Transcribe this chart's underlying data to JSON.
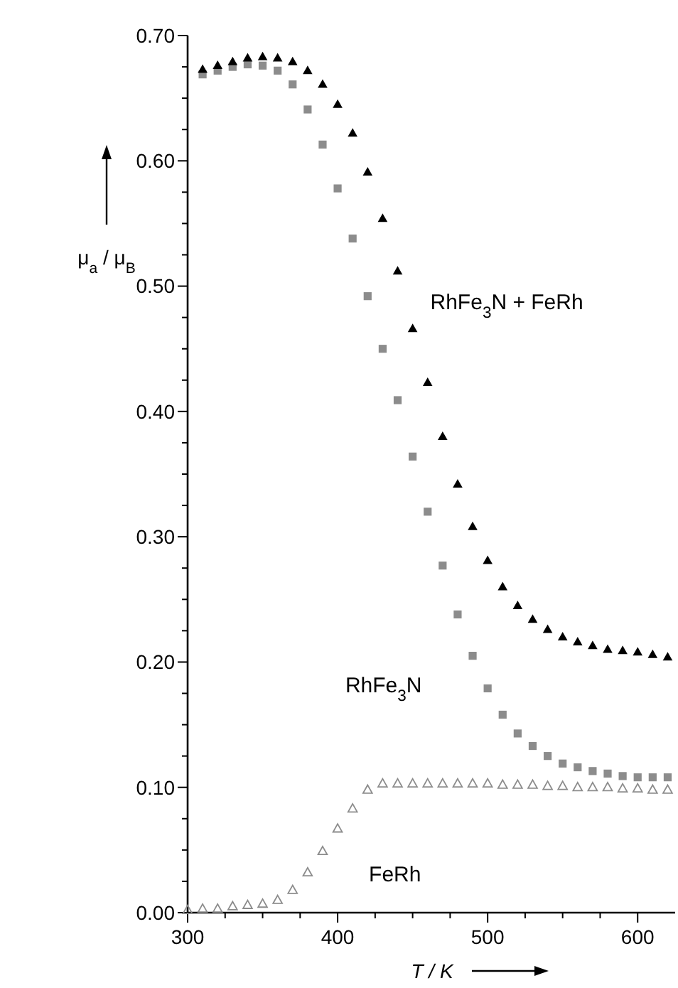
{
  "chart_data": {
    "type": "scatter",
    "xlabel": "T / K",
    "ylabel": "μ$_{a}$ / μ$_{B}$",
    "xlim": [
      300,
      625
    ],
    "ylim": [
      0,
      0.7
    ],
    "xticks": [
      300,
      {
        "value": 325,
        "label": null
      },
      {
        "value": 350,
        "label": null
      },
      {
        "value": 375,
        "label": null
      },
      400,
      {
        "value": 425,
        "label": null
      },
      {
        "value": 450,
        "label": null
      },
      {
        "value": 475,
        "label": null
      },
      500,
      {
        "value": 525,
        "label": null
      },
      {
        "value": 550,
        "label": null
      },
      {
        "value": 575,
        "label": null
      },
      600
    ],
    "yticks": [
      {
        "value": 0,
        "label": "0.00"
      },
      {
        "value": 0.025,
        "label": null
      },
      {
        "value": 0.05,
        "label": null
      },
      {
        "value": 0.075,
        "label": null
      },
      {
        "value": 0.1,
        "label": "0.10"
      },
      {
        "value": 0.125,
        "label": null
      },
      {
        "value": 0.15,
        "label": null
      },
      {
        "value": 0.175,
        "label": null
      },
      {
        "value": 0.2,
        "label": "0.20"
      },
      {
        "value": 0.225,
        "label": null
      },
      {
        "value": 0.25,
        "label": null
      },
      {
        "value": 0.275,
        "label": null
      },
      {
        "value": 0.3,
        "label": "0.30"
      },
      {
        "value": 0.325,
        "label": null
      },
      {
        "value": 0.35,
        "label": null
      },
      {
        "value": 0.375,
        "label": null
      },
      {
        "value": 0.4,
        "label": "0.40"
      },
      {
        "value": 0.425,
        "label": null
      },
      {
        "value": 0.45,
        "label": null
      },
      {
        "value": 0.475,
        "label": null
      },
      {
        "value": 0.5,
        "label": "0.50"
      },
      {
        "value": 0.525,
        "label": null
      },
      {
        "value": 0.55,
        "label": null
      },
      {
        "value": 0.575,
        "label": null
      },
      {
        "value": 0.6,
        "label": "0.60"
      },
      {
        "value": 0.625,
        "label": null
      },
      {
        "value": 0.65,
        "label": null
      },
      {
        "value": 0.675,
        "label": null
      },
      {
        "value": 0.7,
        "label": "0.70"
      }
    ],
    "grid": false,
    "series": [
      {
        "name": "RhFe$_{3}$N + FeRh",
        "color": "#000000",
        "marker": "triangle",
        "x": [
          310,
          320,
          330,
          340,
          350,
          360,
          370,
          380,
          390,
          400,
          410,
          420,
          430,
          440,
          450,
          460,
          470,
          480,
          490,
          500,
          510,
          520,
          530,
          540,
          550,
          560,
          570,
          580,
          590,
          600,
          610,
          620
        ],
        "values": [
          0.673,
          0.676,
          0.679,
          0.682,
          0.683,
          0.682,
          0.679,
          0.672,
          0.661,
          0.645,
          0.622,
          0.591,
          0.554,
          0.512,
          0.466,
          0.423,
          0.38,
          0.342,
          0.308,
          0.281,
          0.26,
          0.245,
          0.234,
          0.226,
          0.22,
          0.216,
          0.213,
          0.21,
          0.209,
          0.208,
          0.206,
          0.204
        ]
      },
      {
        "name": "RhFe$_{3}$N",
        "color": "#8c8c8c",
        "marker": "square",
        "x": [
          310,
          320,
          330,
          340,
          350,
          360,
          370,
          380,
          390,
          400,
          410,
          420,
          430,
          440,
          450,
          460,
          470,
          480,
          490,
          500,
          510,
          520,
          530,
          540,
          550,
          560,
          570,
          580,
          590,
          600,
          610,
          620
        ],
        "values": [
          0.669,
          0.672,
          0.675,
          0.677,
          0.676,
          0.672,
          0.661,
          0.641,
          0.613,
          0.578,
          0.538,
          0.492,
          0.45,
          0.409,
          0.364,
          0.32,
          0.277,
          0.238,
          0.205,
          0.179,
          0.158,
          0.143,
          0.133,
          0.125,
          0.119,
          0.116,
          0.113,
          0.111,
          0.109,
          0.108,
          0.108,
          0.108
        ]
      },
      {
        "name": "FeRh",
        "color": "#8c8c8c",
        "marker": "triangle-open",
        "x": [
          300,
          310,
          320,
          330,
          340,
          350,
          360,
          370,
          380,
          390,
          400,
          410,
          420,
          430,
          440,
          450,
          460,
          470,
          480,
          490,
          500,
          510,
          520,
          530,
          540,
          550,
          560,
          570,
          580,
          590,
          600,
          610,
          620
        ],
        "values": [
          0.002,
          0.003,
          0.003,
          0.005,
          0.006,
          0.007,
          0.01,
          0.018,
          0.032,
          0.049,
          0.067,
          0.083,
          0.098,
          0.103,
          0.103,
          0.103,
          0.103,
          0.103,
          0.103,
          0.103,
          0.103,
          0.102,
          0.102,
          0.102,
          0.101,
          0.101,
          0.1,
          0.1,
          0.1,
          0.099,
          0.099,
          0.098,
          0.098
        ]
      }
    ]
  }
}
